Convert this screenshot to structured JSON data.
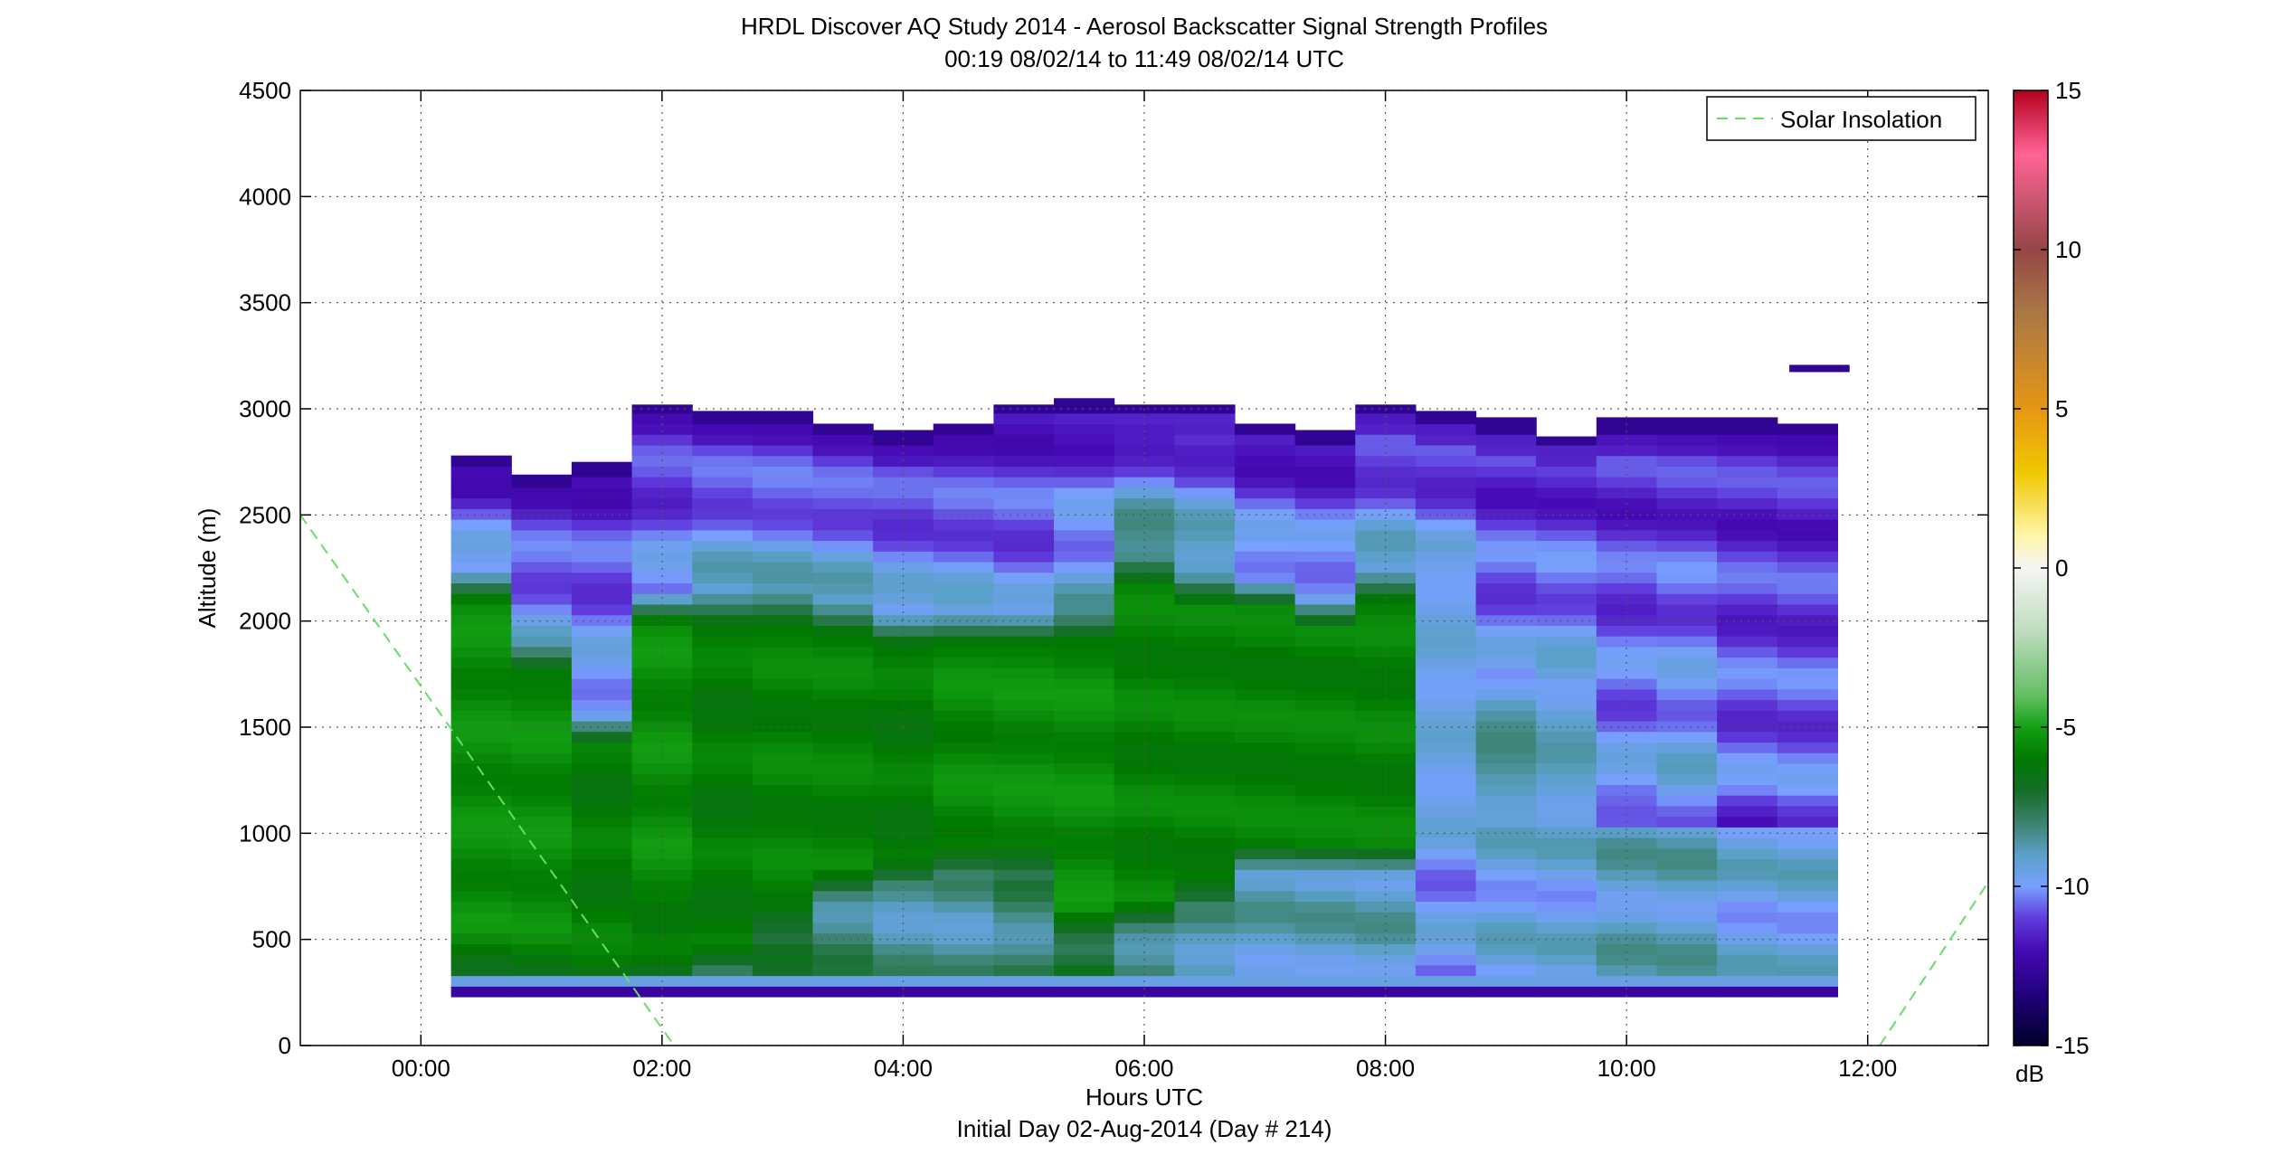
{
  "chart_data": {
    "type": "heatmap",
    "title": "HRDL Discover AQ Study 2014 - Aerosol Backscatter Signal Strength Profiles",
    "subtitle": "00:19 08/02/14 to 11:49 08/02/14  UTC",
    "xlabel": "Hours UTC",
    "xlabel2": "Initial Day 02-Aug-2014 (Day # 214)",
    "ylabel": "Altitude (m)",
    "xlim": [
      -1,
      13
    ],
    "ylim": [
      0,
      4500
    ],
    "grid": true,
    "x_ticks": [
      0,
      2,
      4,
      6,
      8,
      10,
      12
    ],
    "x_tick_labels": [
      "00:00",
      "02:00",
      "04:00",
      "06:00",
      "08:00",
      "10:00",
      "12:00"
    ],
    "y_ticks": [
      0,
      500,
      1000,
      1500,
      2000,
      2500,
      3000,
      3500,
      4000,
      4500
    ],
    "y_tick_labels": [
      "0",
      "500",
      "1000",
      "1500",
      "2000",
      "2500",
      "3000",
      "3500",
      "4000",
      "4500"
    ],
    "legend": {
      "placement": "top-right",
      "entries": [
        "Solar Insolation"
      ]
    },
    "colorbar": {
      "label": "dB",
      "range": [
        -15,
        15
      ],
      "ticks": [
        -15,
        -10,
        -5,
        0,
        5,
        10,
        15
      ],
      "tick_labels": [
        "-15",
        "-10",
        "-5",
        "0",
        "5",
        "10",
        "15"
      ]
    },
    "profile_times": [
      0.5,
      1.0,
      1.5,
      2.0,
      2.5,
      3.0,
      3.5,
      4.0,
      4.5,
      5.0,
      5.5,
      6.0,
      6.5,
      7.0,
      7.5,
      8.0,
      8.5,
      9.0,
      9.5,
      10.0,
      10.5,
      11.0,
      11.5
    ],
    "profile_width_hours": 0.5,
    "profile_bottom_m": 230,
    "profile_top_m": [
      2780,
      2690,
      2750,
      3020,
      2990,
      2990,
      2930,
      2900,
      2930,
      3020,
      3050,
      3020,
      3020,
      2930,
      2900,
      3020,
      2990,
      2960,
      2870,
      2960,
      2960,
      2960,
      2930
    ],
    "aerosol_layer_top_m": [
      2250,
      1900,
      1550,
      2150,
      2150,
      2150,
      2100,
      2050,
      2050,
      2050,
      2050,
      2300,
      2200,
      2200,
      2100,
      2250,
      2350,
      1750,
      1700,
      1200,
      1200,
      1200,
      1200
    ],
    "aerosol_layer_bottom_m": [
      450,
      450,
      450,
      550,
      350,
      500,
      700,
      750,
      800,
      800,
      500,
      550,
      650,
      800,
      800,
      800,
      900,
      1050,
      1050,
      1000,
      1000,
      1000,
      1000
    ],
    "core_signal_db": [
      -5.5,
      -5.5,
      -6.0,
      -5.5,
      -6.0,
      -5.8,
      -5.8,
      -6.0,
      -5.6,
      -5.5,
      -5.5,
      -5.8,
      -5.8,
      -5.8,
      -5.8,
      -5.8,
      -9.5,
      -8.5,
      -9.0,
      -10.5,
      -10.5,
      -11.5,
      -11.0
    ],
    "upper_signal_db": [
      -9.5,
      -9.5,
      -9.5,
      -10.0,
      -9.0,
      -9.0,
      -9.0,
      -9.5,
      -9.5,
      -10.0,
      -9.0,
      -7.5,
      -8.0,
      -9.5,
      -9.5,
      -9.0,
      -10.0,
      -10.0,
      -9.5,
      -10.0,
      -9.5,
      -10.5,
      -10.5
    ],
    "lower_signal_db": [
      -6.0,
      -6.0,
      -6.0,
      -6.5,
      -8.0,
      -7.5,
      -8.0,
      -8.5,
      -8.5,
      -8.0,
      -7.0,
      -8.0,
      -8.5,
      -9.0,
      -9.0,
      -9.0,
      -10.0,
      -9.5,
      -9.5,
      -9.0,
      -9.0,
      -9.5,
      -9.5
    ],
    "cloud_segment": {
      "x": [
        11.35,
        11.85
      ],
      "altitude_m": 3190
    },
    "solar_insolation": {
      "line_style": "dashed",
      "color": "#66dd66",
      "segments": [
        {
          "x": [
            -1.0,
            2.1
          ],
          "y": [
            2500,
            0
          ]
        },
        {
          "x": [
            12.1,
            13.0
          ],
          "y": [
            0,
            770
          ]
        }
      ]
    }
  }
}
